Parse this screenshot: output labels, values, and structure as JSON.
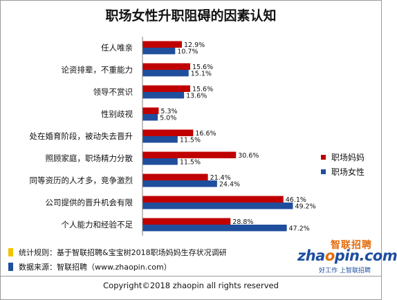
{
  "chart_data": {
    "type": "bar",
    "orientation": "horizontal",
    "title": "职场女性升职阻碍的因素认知",
    "categories": [
      "任人唯亲",
      "论资排辈，不重能力",
      "领导不赏识",
      "性别歧视",
      "处在婚育阶段，被动失去晋升",
      "照顾家庭，职场精力分散",
      "同等资历的人才多，竞争激烈",
      "公司提供的晋升机会有限",
      "个人能力和经验不足"
    ],
    "series": [
      {
        "name": "职场妈妈",
        "color": "#c00000",
        "values": [
          12.9,
          15.6,
          15.6,
          5.3,
          16.6,
          30.6,
          21.4,
          46.1,
          28.8
        ],
        "labels": [
          "12.9%",
          "15.6%",
          "15.6%",
          "5.3%",
          "16.6%",
          "30.6%",
          "21.4%",
          "46.1%",
          "28.8%"
        ]
      },
      {
        "name": "职场女性",
        "color": "#1f4e9c",
        "values": [
          10.7,
          15.1,
          13.6,
          5.0,
          11.5,
          11.5,
          24.4,
          49.2,
          47.2
        ],
        "labels": [
          "10.7%",
          "15.1%",
          "13.6%",
          "5.0%",
          "11.5%",
          "11.5%",
          "24.4%",
          "49.2%",
          "47.2%"
        ]
      }
    ],
    "xlim": [
      0,
      60
    ],
    "legend_position": "right",
    "grid": false
  },
  "notes": [
    {
      "text": "统计规则：基于智联招聘&宝宝树2018职场妈妈生存状况调研",
      "color": "#f2c200"
    },
    {
      "text": "数据来源：智联招聘（www.zhaopin.com）",
      "color": "#1f4e9c"
    }
  ],
  "logo": {
    "brand_cn": "智联招聘",
    "brand_en_prefix": "zha",
    "brand_en_o": "o",
    "brand_en_suffix": "pin.com",
    "slogan": "好工作 上智联招聘"
  },
  "copyright": "Copyright©2018 zhaopin all rights reserved"
}
